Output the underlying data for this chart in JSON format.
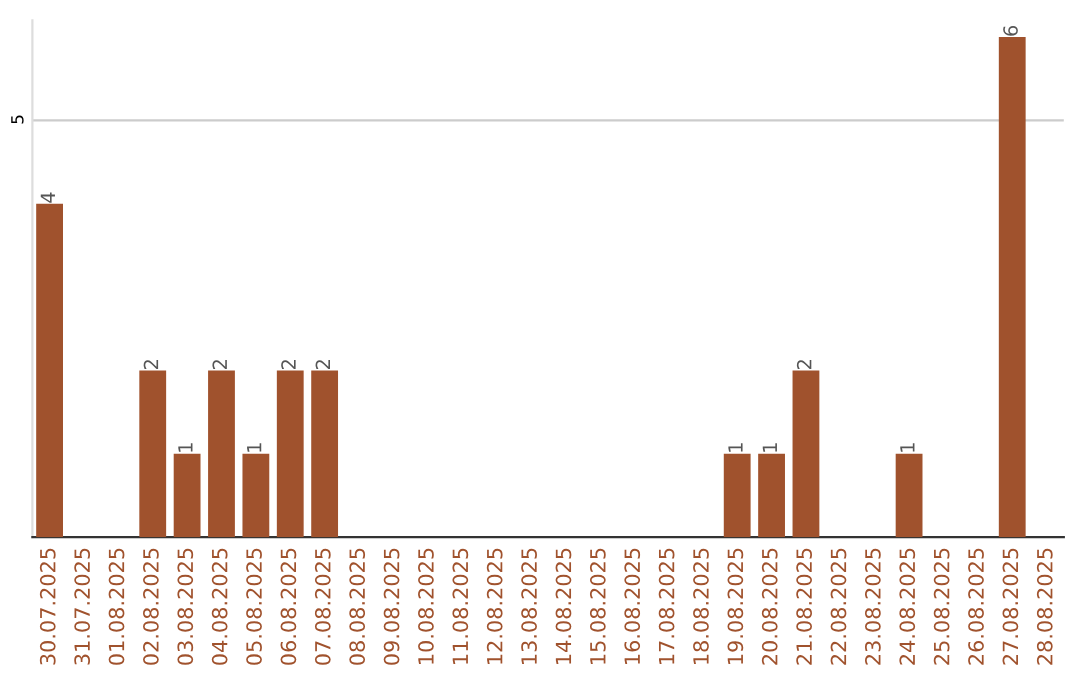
{
  "chart_data": {
    "type": "bar",
    "categories": [
      "30.07.2025",
      "31.07.2025",
      "01.08.2025",
      "02.08.2025",
      "03.08.2025",
      "04.08.2025",
      "05.08.2025",
      "06.08.2025",
      "07.08.2025",
      "08.08.2025",
      "09.08.2025",
      "10.08.2025",
      "11.08.2025",
      "12.08.2025",
      "13.08.2025",
      "14.08.2025",
      "15.08.2025",
      "16.08.2025",
      "17.08.2025",
      "18.08.2025",
      "19.08.2025",
      "20.08.2025",
      "21.08.2025",
      "22.08.2025",
      "23.08.2025",
      "24.08.2025",
      "25.08.2025",
      "26.08.2025",
      "27.08.2025",
      "28.08.2025"
    ],
    "values": [
      4,
      0,
      0,
      2,
      1,
      2,
      1,
      2,
      2,
      0,
      0,
      0,
      0,
      0,
      0,
      0,
      0,
      0,
      0,
      0,
      1,
      1,
      2,
      0,
      0,
      1,
      0,
      0,
      6,
      0
    ],
    "value_labels": [
      "4",
      null,
      null,
      "2",
      "1",
      "2",
      "1",
      "2",
      "2",
      null,
      null,
      null,
      null,
      null,
      null,
      null,
      null,
      null,
      null,
      null,
      "1",
      "1",
      "2",
      null,
      null,
      "1",
      null,
      null,
      "6",
      null
    ],
    "color": "#a0522d",
    "ylim": [
      0,
      6.2
    ],
    "yticks": [
      5
    ],
    "grid": "y"
  }
}
